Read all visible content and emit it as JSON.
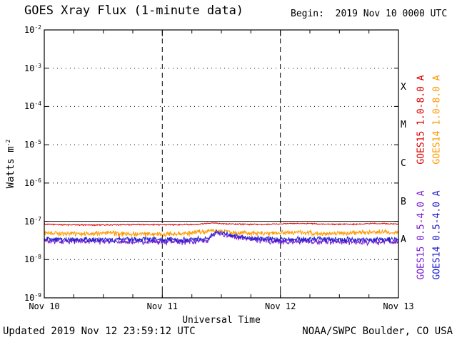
{
  "header": {
    "title": "GOES Xray Flux (1-minute data)",
    "begin_label": "Begin:  2019 Nov 10 0000 UTC"
  },
  "footer": {
    "updated": "Updated 2019 Nov 12 23:59:12 UTC",
    "credit": "NOAA/SWPC Boulder, CO USA"
  },
  "chart_data": {
    "type": "line",
    "title": "GOES Xray Flux (1-minute data)",
    "xlabel": "Universal Time",
    "ylabel": "Watts m-2",
    "ylabel_base": "Watts m",
    "ylabel_exp": "-2",
    "x_ticks": [
      "Nov 10",
      "Nov 11",
      "Nov 12",
      "Nov 13"
    ],
    "x_range_days": [
      0,
      3
    ],
    "y_ticks": [
      -2,
      -3,
      -4,
      -5,
      -6,
      -7,
      -8,
      -9
    ],
    "y_log_range": [
      1e-09,
      0.01
    ],
    "grid": {
      "h_dotted_exponents": [
        -3,
        -4,
        -5,
        -6,
        -8
      ],
      "h_solid_exponents": [
        -7
      ],
      "v_dashed_days": [
        1,
        2
      ]
    },
    "flare_classes": [
      {
        "label": "X",
        "between": [
          -4,
          -3
        ]
      },
      {
        "label": "M",
        "between": [
          -5,
          -4
        ]
      },
      {
        "label": "C",
        "between": [
          -6,
          -5
        ]
      },
      {
        "label": "B",
        "between": [
          -7,
          -6
        ]
      },
      {
        "label": "A",
        "between": [
          -8,
          -7
        ]
      }
    ],
    "series": [
      {
        "name": "GOES15 1.0-8.0 A",
        "slug": "goes15-long",
        "color": "#dd0000",
        "noise": 2.5e-09,
        "trend": [
          [
            0,
            8.3e-08
          ],
          [
            0.2,
            8.1e-08
          ],
          [
            0.5,
            8e-08
          ],
          [
            0.8,
            8.2e-08
          ],
          [
            1.05,
            8.1e-08
          ],
          [
            1.3,
            8.3e-08
          ],
          [
            1.42,
            9.1e-08
          ],
          [
            1.5,
            8.7e-08
          ],
          [
            1.65,
            8.4e-08
          ],
          [
            1.85,
            8.2e-08
          ],
          [
            2.05,
            8.7e-08
          ],
          [
            2.2,
            8.9e-08
          ],
          [
            2.35,
            8.4e-08
          ],
          [
            2.6,
            8.3e-08
          ],
          [
            2.8,
            8.8e-08
          ],
          [
            3,
            8.5e-08
          ]
        ]
      },
      {
        "name": "GOES14 1.0-8.0 A",
        "slug": "goes14-long",
        "color": "#ff9900",
        "noise": 6e-09,
        "trend": [
          [
            0,
            5e-08
          ],
          [
            0.25,
            4.7e-08
          ],
          [
            0.55,
            4.9e-08
          ],
          [
            0.85,
            4.6e-08
          ],
          [
            1.15,
            4.7e-08
          ],
          [
            1.42,
            5.7e-08
          ],
          [
            1.6,
            5.1e-08
          ],
          [
            1.85,
            4.8e-08
          ],
          [
            2.1,
            5.2e-08
          ],
          [
            2.35,
            4.8e-08
          ],
          [
            2.6,
            5e-08
          ],
          [
            2.8,
            5.3e-08
          ],
          [
            3,
            5.1e-08
          ]
        ]
      },
      {
        "name": "GOES15 0.5-4.0 A",
        "slug": "goes15-short",
        "color": "#7a1fd2",
        "noise": 4.5e-09,
        "trend": [
          [
            0,
            3e-08
          ],
          [
            0.4,
            3e-08
          ],
          [
            0.8,
            2.9e-08
          ],
          [
            1.2,
            3e-08
          ],
          [
            1.38,
            3.1e-08
          ],
          [
            1.46,
            4.9e-08
          ],
          [
            1.56,
            4.1e-08
          ],
          [
            1.72,
            3.4e-08
          ],
          [
            1.95,
            3e-08
          ],
          [
            2.3,
            3e-08
          ],
          [
            2.65,
            2.9e-08
          ],
          [
            3,
            3e-08
          ]
        ]
      },
      {
        "name": "GOES14 0.5-4.0 A",
        "slug": "goes14-short",
        "color": "#2222cc",
        "noise": 4.5e-09,
        "trend": [
          [
            0,
            3.4e-08
          ],
          [
            0.4,
            3.3e-08
          ],
          [
            0.8,
            3.4e-08
          ],
          [
            1.2,
            3.3e-08
          ],
          [
            1.38,
            3.5e-08
          ],
          [
            1.46,
            5.3e-08
          ],
          [
            1.56,
            4.5e-08
          ],
          [
            1.72,
            3.7e-08
          ],
          [
            1.95,
            3.4e-08
          ],
          [
            2.3,
            3.4e-08
          ],
          [
            2.65,
            3.3e-08
          ],
          [
            3,
            3.4e-08
          ]
        ]
      }
    ]
  }
}
